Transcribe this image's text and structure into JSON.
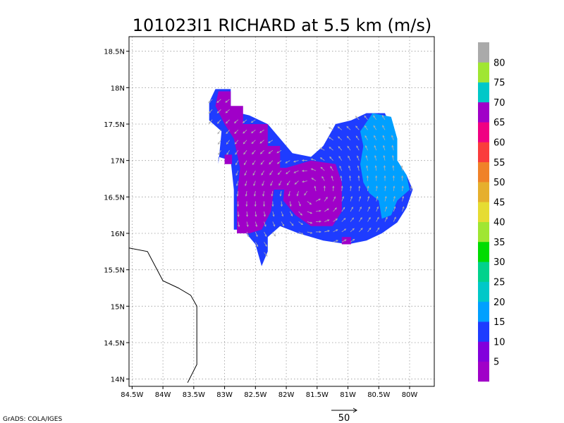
{
  "chart_data": {
    "type": "heatmap",
    "title": "101023I1 RICHARD at 5.5 km (m/s)",
    "xlabel": "",
    "ylabel": "",
    "xlim": [
      -84.55,
      -79.6
    ],
    "ylim": [
      13.9,
      18.7
    ],
    "grid": true,
    "x_ticks": [
      {
        "value": -84.5,
        "label": "84.5W"
      },
      {
        "value": -84.0,
        "label": "84W"
      },
      {
        "value": -83.5,
        "label": "83.5W"
      },
      {
        "value": -83.0,
        "label": "83W"
      },
      {
        "value": -82.5,
        "label": "82.5W"
      },
      {
        "value": -82.0,
        "label": "82W"
      },
      {
        "value": -81.5,
        "label": "81.5W"
      },
      {
        "value": -81.0,
        "label": "81W"
      },
      {
        "value": -80.5,
        "label": "80.5W"
      },
      {
        "value": -80.0,
        "label": "80W"
      }
    ],
    "y_ticks": [
      {
        "value": 14.0,
        "label": "14N"
      },
      {
        "value": 14.5,
        "label": "14.5N"
      },
      {
        "value": 15.0,
        "label": "15N"
      },
      {
        "value": 15.5,
        "label": "15.5N"
      },
      {
        "value": 16.0,
        "label": "16N"
      },
      {
        "value": 16.5,
        "label": "16.5N"
      },
      {
        "value": 17.0,
        "label": "17N"
      },
      {
        "value": 17.5,
        "label": "17.5N"
      },
      {
        "value": 18.0,
        "label": "18N"
      },
      {
        "value": 18.5,
        "label": "18.5N"
      }
    ],
    "colorbar": {
      "labels": [
        "5",
        "10",
        "15",
        "20",
        "25",
        "30",
        "35",
        "40",
        "45",
        "50",
        "55",
        "60",
        "65",
        "70",
        "75",
        "80"
      ],
      "colors": [
        "#a000c8",
        "#8200dc",
        "#1e3cff",
        "#00a0ff",
        "#00c8c8",
        "#00d28c",
        "#00dc00",
        "#a0e632",
        "#e6dc32",
        "#e6af2d",
        "#f08228",
        "#fa3c3c",
        "#f00082",
        "#a000c8",
        "#00c8c8",
        "#a0e632",
        "#aaaaaa"
      ]
    },
    "regions": [
      {
        "name": "purple-north-arm",
        "speed_class": "5-10",
        "color": "#a000c8",
        "polygon": [
          [
            -83.1,
            17.95
          ],
          [
            -82.9,
            17.95
          ],
          [
            -82.9,
            17.75
          ],
          [
            -82.7,
            17.75
          ],
          [
            -82.7,
            17.5
          ],
          [
            -82.3,
            17.5
          ],
          [
            -82.3,
            17.2
          ],
          [
            -82.1,
            17.2
          ],
          [
            -82.1,
            16.9
          ],
          [
            -81.95,
            16.9
          ],
          [
            -81.95,
            16.6
          ],
          [
            -82.2,
            16.6
          ],
          [
            -82.25,
            16.3
          ],
          [
            -82.4,
            16.05
          ],
          [
            -82.6,
            16.0
          ],
          [
            -82.8,
            16.0
          ],
          [
            -82.8,
            16.5
          ],
          [
            -82.75,
            16.9
          ],
          [
            -82.85,
            17.3
          ],
          [
            -83.0,
            17.5
          ],
          [
            -83.15,
            17.75
          ]
        ]
      },
      {
        "name": "purple-center",
        "speed_class": "5-10",
        "color": "#a000c8",
        "polygon": [
          [
            -82.0,
            16.9
          ],
          [
            -81.6,
            17.0
          ],
          [
            -81.2,
            16.95
          ],
          [
            -81.1,
            16.7
          ],
          [
            -81.1,
            16.3
          ],
          [
            -81.25,
            16.1
          ],
          [
            -81.6,
            16.1
          ],
          [
            -81.85,
            16.25
          ],
          [
            -82.05,
            16.45
          ]
        ]
      },
      {
        "name": "purple-small-west",
        "speed_class": "5-10",
        "color": "#a000c8",
        "polygon": [
          [
            -83.0,
            17.08
          ],
          [
            -82.88,
            17.08
          ],
          [
            -82.88,
            16.95
          ],
          [
            -83.0,
            16.95
          ]
        ]
      },
      {
        "name": "purple-south-patch",
        "speed_class": "5-10",
        "color": "#a000c8",
        "polygon": [
          [
            -81.1,
            15.95
          ],
          [
            -80.95,
            15.95
          ],
          [
            -80.95,
            15.85
          ],
          [
            -81.1,
            15.85
          ]
        ]
      },
      {
        "name": "light-blue-east",
        "speed_class": "15-20",
        "color": "#00a0ff",
        "polygon": [
          [
            -80.6,
            17.65
          ],
          [
            -80.3,
            17.6
          ],
          [
            -80.2,
            17.3
          ],
          [
            -80.2,
            17.0
          ],
          [
            -80.05,
            16.8
          ],
          [
            -80.0,
            16.6
          ],
          [
            -80.2,
            16.45
          ],
          [
            -80.3,
            16.25
          ],
          [
            -80.45,
            16.2
          ],
          [
            -80.5,
            16.45
          ],
          [
            -80.65,
            16.55
          ],
          [
            -80.75,
            16.7
          ],
          [
            -80.8,
            16.95
          ],
          [
            -80.75,
            17.2
          ],
          [
            -80.8,
            17.4
          ]
        ]
      }
    ],
    "domain_polygon": [
      [
        -83.15,
        17.98
      ],
      [
        -82.9,
        17.98
      ],
      [
        -82.9,
        17.68
      ],
      [
        -82.6,
        17.62
      ],
      [
        -82.3,
        17.5
      ],
      [
        -81.9,
        17.1
      ],
      [
        -81.6,
        17.05
      ],
      [
        -81.4,
        17.2
      ],
      [
        -81.2,
        17.5
      ],
      [
        -80.95,
        17.55
      ],
      [
        -80.7,
        17.65
      ],
      [
        -80.4,
        17.65
      ],
      [
        -80.25,
        17.35
      ],
      [
        -80.2,
        17.0
      ],
      [
        -80.05,
        16.8
      ],
      [
        -79.95,
        16.6
      ],
      [
        -80.05,
        16.35
      ],
      [
        -80.2,
        16.15
      ],
      [
        -80.45,
        16.0
      ],
      [
        -80.7,
        15.9
      ],
      [
        -81.0,
        15.85
      ],
      [
        -81.4,
        15.9
      ],
      [
        -81.8,
        16.0
      ],
      [
        -82.1,
        16.1
      ],
      [
        -82.3,
        15.95
      ],
      [
        -82.3,
        15.75
      ],
      [
        -82.4,
        15.55
      ],
      [
        -82.5,
        15.85
      ],
      [
        -82.7,
        16.05
      ],
      [
        -82.85,
        16.05
      ],
      [
        -82.85,
        16.6
      ],
      [
        -82.9,
        17.0
      ],
      [
        -83.1,
        17.05
      ],
      [
        -83.1,
        16.95
      ],
      [
        -83.05,
        17.4
      ],
      [
        -83.25,
        17.55
      ],
      [
        -83.25,
        17.8
      ]
    ],
    "coastline": [
      [
        -84.55,
        15.8
      ],
      [
        -84.25,
        15.75
      ],
      [
        -84.0,
        15.35
      ],
      [
        -83.75,
        15.25
      ],
      [
        -83.55,
        15.15
      ],
      [
        -83.45,
        15.0
      ],
      [
        -83.45,
        14.2
      ],
      [
        -83.6,
        13.95
      ]
    ],
    "vector_scale_label": "50",
    "credit": "GrADS: COLA/IGES"
  }
}
